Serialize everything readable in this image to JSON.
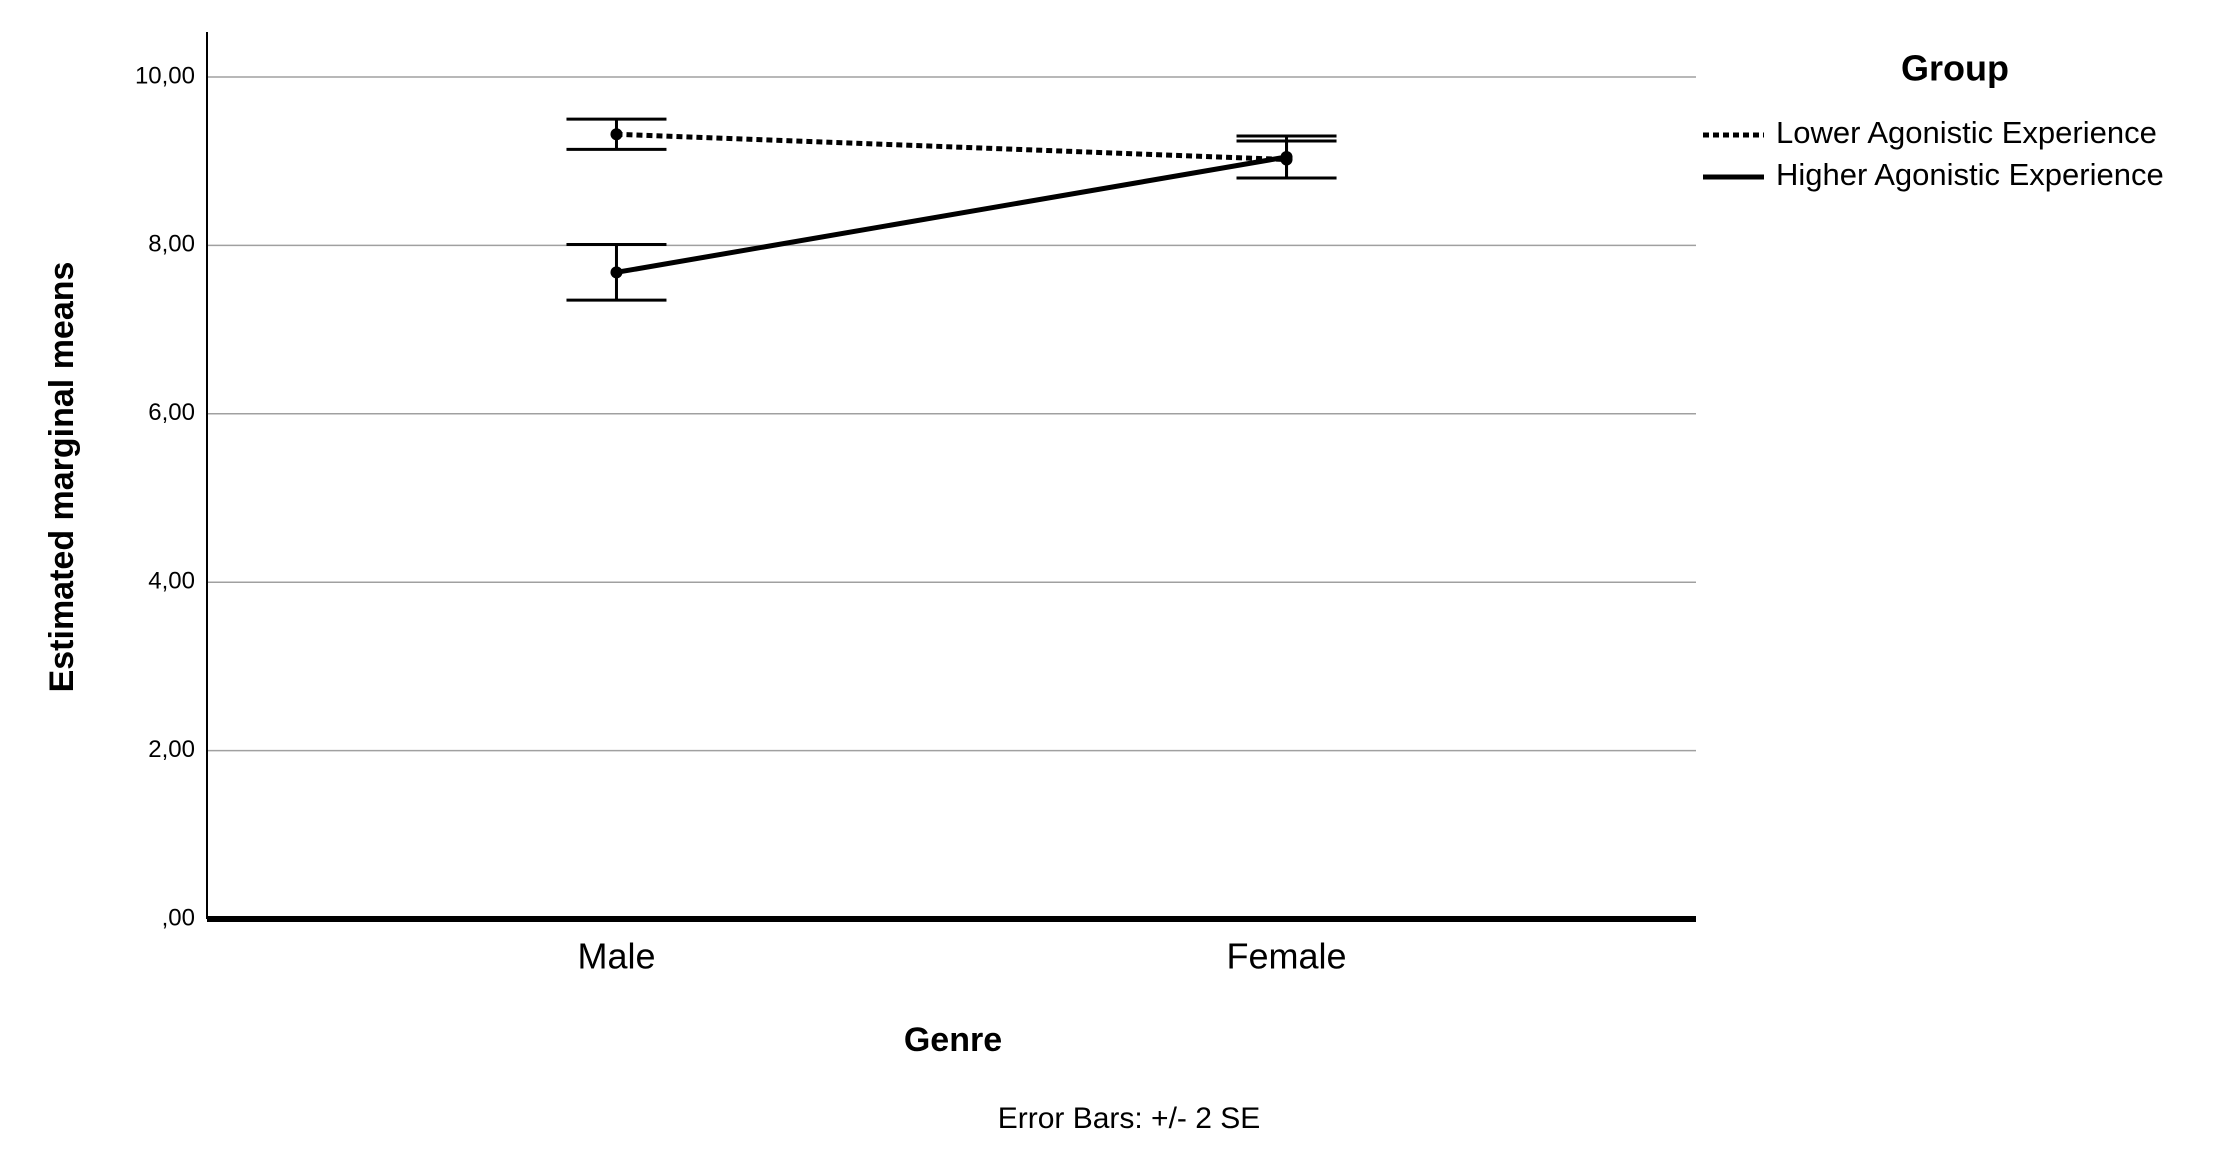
{
  "chart_data": {
    "type": "line",
    "x_label": "Genre",
    "y_label": "Estimated marginal means",
    "legend_title": "Group",
    "legend": "right",
    "note": "Error Bars: +/- 2 SE",
    "categories": [
      "Male",
      "Female"
    ],
    "series": [
      {
        "name": "Lower Agonistic Experience",
        "color": "#000000",
        "dash": true,
        "values": [
          9.32,
          9.02
        ],
        "errors": [
          0.18,
          0.22
        ]
      },
      {
        "name": "Higher Agonistic Experience",
        "color": "#000000",
        "dash": false,
        "values": [
          7.68,
          9.05
        ],
        "errors": [
          0.33,
          0.25
        ]
      }
    ],
    "ylim": [
      0,
      10
    ],
    "yticks": [
      {
        "value": 0,
        "label": ",00"
      },
      {
        "value": 2,
        "label": "2,00"
      },
      {
        "value": 4,
        "label": "4,00"
      },
      {
        "value": 6,
        "label": "6,00"
      },
      {
        "value": 8,
        "label": "8,00"
      },
      {
        "value": 10,
        "label": "10,00"
      }
    ],
    "grid": true
  }
}
